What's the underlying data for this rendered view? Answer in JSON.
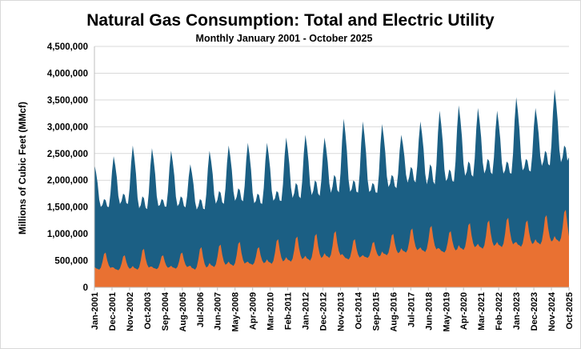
{
  "chart_data": {
    "type": "area",
    "title": "Natural Gas Consumption: Total and Electric Utility",
    "subtitle": "Monthly January 2001 - October 2025",
    "ylabel": "Millions of Cubic Feet (MMcf)",
    "xlabel": "",
    "ylim": [
      0,
      4500000
    ],
    "y_ticks": [
      0,
      500000,
      1000000,
      1500000,
      2000000,
      2500000,
      3000000,
      3500000,
      4000000,
      4500000
    ],
    "y_tick_labels": [
      "0",
      "500,000",
      "1,000,000",
      "1,500,000",
      "2,000,000",
      "2,500,000",
      "3,000,000",
      "3,500,000",
      "4,000,000",
      "4,500,000"
    ],
    "x_start": "2001-01",
    "x_end": "2025-10",
    "x_tick_labels": [
      "Jan-2001",
      "Dec-2001",
      "Nov-2002",
      "Oct-2003",
      "Sep-2004",
      "Aug-2005",
      "Jul-2006",
      "Jun-2007",
      "May-2008",
      "Apr-2009",
      "Mar-2010",
      "Feb-2011",
      "Jan-2012",
      "Dec-2012",
      "Nov-2013",
      "Oct-2014",
      "Sep-2015",
      "Aug-2016",
      "Jul-2017",
      "Jun-2018",
      "May-2019",
      "Apr-2020",
      "Mar-2021",
      "Feb-2022",
      "Jan-2023",
      "Dec-2023",
      "Nov-2024",
      "Oct-2025"
    ],
    "grid": true,
    "legend": "none",
    "colors": {
      "total": "#1b5f84",
      "electric": "#e97132"
    },
    "series": [
      {
        "name": "Total",
        "annual_peak": [
          2300000,
          2450000,
          2650000,
          2600000,
          2550000,
          2300000,
          2550000,
          2650000,
          2700000,
          2700000,
          2800000,
          2850000,
          2800000,
          3150000,
          3100000,
          3050000,
          2850000,
          3100000,
          3300000,
          3400000,
          3350000,
          3300000,
          3550000,
          3350000,
          3700000
        ],
        "annual_trough": [
          1450000,
          1500000,
          1400000,
          1450000,
          1450000,
          1400000,
          1500000,
          1550000,
          1500000,
          1550000,
          1600000,
          1650000,
          1700000,
          1700000,
          1700000,
          1800000,
          1900000,
          1850000,
          1900000,
          2000000,
          2050000,
          2050000,
          2100000,
          2200000,
          2250000
        ],
        "summer_peak": [
          1650000,
          1750000,
          1700000,
          1650000,
          1700000,
          1650000,
          1800000,
          1850000,
          1750000,
          1800000,
          1950000,
          2000000,
          2100000,
          2000000,
          1950000,
          2100000,
          2250000,
          2300000,
          2200000,
          2350000,
          2400000,
          2350000,
          2400000,
          2550000,
          2650000
        ],
        "last_value": 2430000
      },
      {
        "name": "Electric Utility",
        "annual_peak": [
          650000,
          600000,
          720000,
          600000,
          650000,
          750000,
          800000,
          850000,
          750000,
          900000,
          950000,
          1000000,
          1050000,
          900000,
          850000,
          1000000,
          1100000,
          1150000,
          1050000,
          1200000,
          1250000,
          1300000,
          1250000,
          1350000,
          1450000
        ],
        "annual_trough": [
          330000,
          320000,
          330000,
          340000,
          350000,
          330000,
          380000,
          400000,
          420000,
          440000,
          480000,
          500000,
          550000,
          520000,
          550000,
          600000,
          650000,
          660000,
          650000,
          700000,
          720000,
          750000,
          760000,
          800000,
          850000
        ],
        "last_value": 950000
      }
    ]
  }
}
